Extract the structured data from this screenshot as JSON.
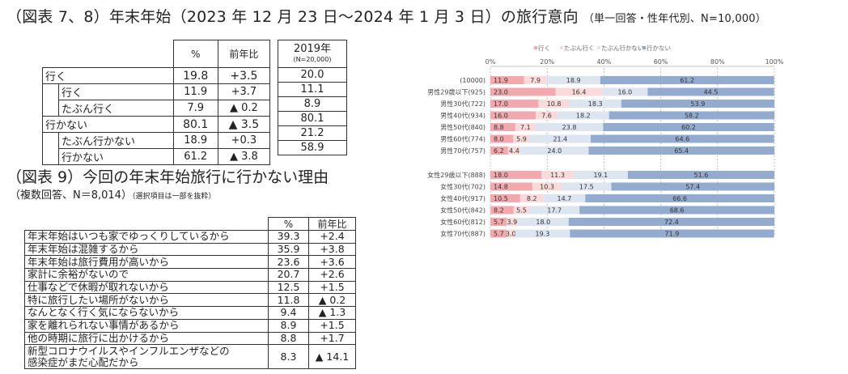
{
  "title": {
    "main": "（図表 7、8）年末年始（2023 年 12 月 23 日～2024 年 1 月 3 日）の旅行意向",
    "sub": "（単一回答・性年代別、N=10,000）"
  },
  "table1": {
    "headers": {
      "pct": "%",
      "yoy": "前年比",
      "y2019": "2019年",
      "y2019_n": "(N=20,000)"
    },
    "rows": [
      {
        "label": "行く",
        "pct": "19.8",
        "yoy": "+3.5",
        "y2019": "20.0"
      },
      {
        "label": "行く",
        "pct": "11.9",
        "yoy": "+3.7",
        "y2019": "11.1"
      },
      {
        "label": "たぶん行く",
        "pct": "7.9",
        "yoy": "▲ 0.2",
        "y2019": "8.9"
      },
      {
        "label": "行かない",
        "pct": "80.1",
        "yoy": "▲ 3.5",
        "y2019": "80.1"
      },
      {
        "label": "たぶん行かない",
        "pct": "18.9",
        "yoy": "+0.3",
        "y2019": "21.2"
      },
      {
        "label": "行かない",
        "pct": "61.2",
        "yoy": "▲ 3.8",
        "y2019": "58.9"
      }
    ]
  },
  "title9": {
    "main": "（図表 9）今回の年末年始旅行に行かない理由",
    "sub": "（複数回答、N＝8,014）",
    "note": "（選択項目は一部を抜粋）"
  },
  "table2": {
    "headers": {
      "pct": "%",
      "yoy": "前年比"
    },
    "rows": [
      {
        "reason": "年末年始はいつも家でゆっくりしているから",
        "pct": "39.3",
        "yoy": "+2.4"
      },
      {
        "reason": "年末年始は混雑するから",
        "pct": "35.9",
        "yoy": "+3.8"
      },
      {
        "reason": "年末年始は旅行費用が高いから",
        "pct": "23.6",
        "yoy": "+3.6"
      },
      {
        "reason": "家計に余裕がないので",
        "pct": "20.7",
        "yoy": "+2.6"
      },
      {
        "reason": "仕事などで休暇が取れないから",
        "pct": "12.5",
        "yoy": "+1.5"
      },
      {
        "reason": "特に旅行したい場所がないから",
        "pct": "11.8",
        "yoy": "▲ 0.2"
      },
      {
        "reason": "なんとなく行く気にならないから",
        "pct": "9.4",
        "yoy": "▲ 1.3"
      },
      {
        "reason": "家を離れられない事情があるから",
        "pct": "8.9",
        "yoy": "+1.5"
      },
      {
        "reason": "他の時期に旅行に出かけるから",
        "pct": "8.8",
        "yoy": "+1.7"
      },
      {
        "reason": "新型コロナウイルスやインフルエンザなどの",
        "reason2": "感染症がまだ心配だから",
        "pct": "8.3",
        "yoy": "▲ 14.1"
      }
    ]
  },
  "chart_data": {
    "type": "bar",
    "orientation": "horizontal",
    "stacked": true,
    "xlim": [
      0,
      100
    ],
    "x_ticks": [
      "0%",
      "20%",
      "40%",
      "60%",
      "80%",
      "100%"
    ],
    "legend_position": "top",
    "series": [
      {
        "name": "行く",
        "color": "#f2a9ad"
      },
      {
        "name": "たぶん行く",
        "color": "#fadadb"
      },
      {
        "name": "たぶん行かない",
        "color": "#dde5f1"
      },
      {
        "name": "行かない",
        "color": "#93abcf"
      }
    ],
    "categories": [
      "(10000)",
      "男性29歳以下(925)",
      "男性30代(722)",
      "男性40代(934)",
      "男性50代(840)",
      "男性60代(774)",
      "男性70代(757)",
      "女性29歳以下(888)",
      "女性30代(702)",
      "女性40代(917)",
      "女性50代(842)",
      "女性60代(812)",
      "女性70代(887)"
    ],
    "values": [
      [
        11.9,
        7.9,
        18.9,
        61.2
      ],
      [
        23.0,
        16.4,
        16.0,
        44.5
      ],
      [
        17.0,
        10.8,
        18.3,
        53.9
      ],
      [
        16.0,
        7.6,
        18.2,
        58.2
      ],
      [
        8.8,
        7.1,
        23.8,
        60.2
      ],
      [
        8.0,
        5.9,
        21.4,
        64.6
      ],
      [
        6.2,
        4.4,
        24.0,
        65.4
      ],
      [
        18.0,
        11.3,
        19.1,
        51.6
      ],
      [
        14.8,
        10.3,
        17.5,
        57.4
      ],
      [
        10.5,
        8.2,
        14.7,
        66.6
      ],
      [
        8.2,
        5.5,
        17.7,
        68.6
      ],
      [
        5.7,
        3.9,
        18.0,
        72.4
      ],
      [
        5.7,
        3.0,
        19.3,
        71.9
      ]
    ]
  }
}
